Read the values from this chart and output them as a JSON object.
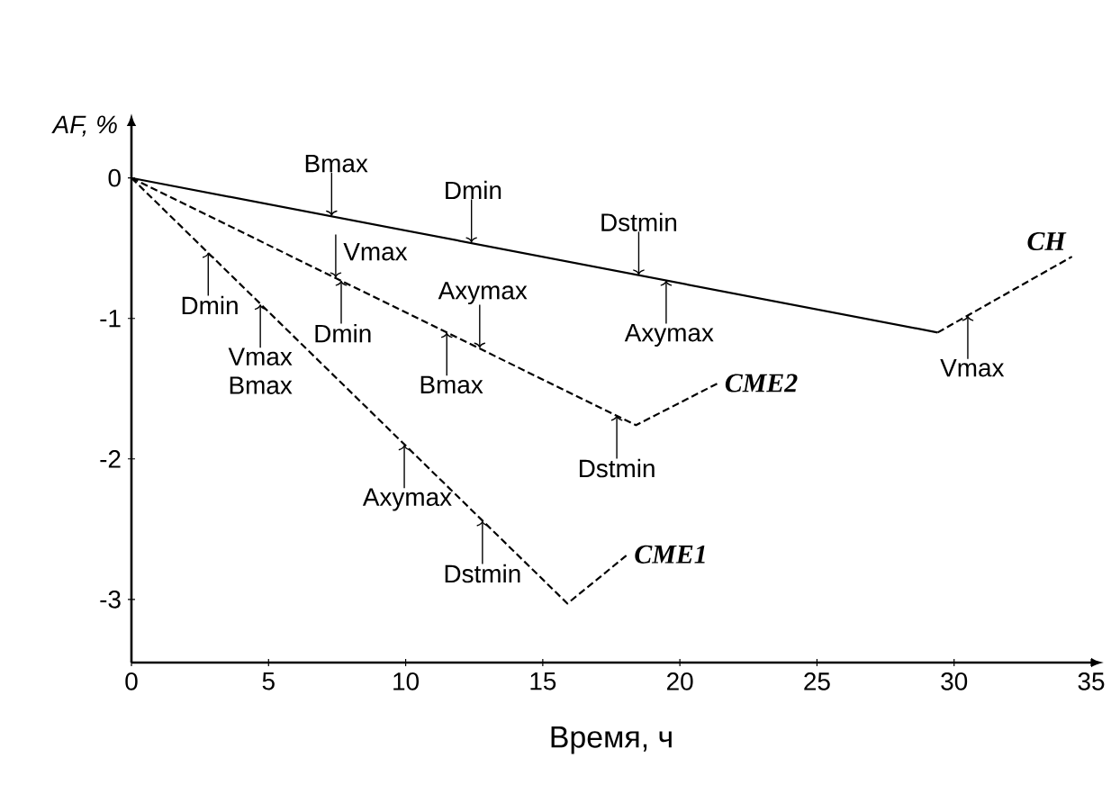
{
  "chart_data": {
    "type": "line",
    "xlabel": "Время, ч",
    "ylabel": "AF, %",
    "xlim": [
      0,
      35
    ],
    "ylim": [
      -3.45,
      0.37
    ],
    "xticks": [
      0,
      5,
      10,
      15,
      20,
      25,
      30,
      35
    ],
    "yticks": [
      0,
      -1,
      -2,
      -3
    ],
    "series": [
      {
        "color": "#000000",
        "line_style": "solid",
        "x": [
          0,
          29.4
        ],
        "values": [
          0,
          -1.1
        ]
      },
      {
        "name": "CH",
        "color": "#000000",
        "line_style": "dashed",
        "x": [
          29.4,
          34.3
        ],
        "values": [
          -1.1,
          -0.56
        ]
      },
      {
        "name": "CME2",
        "color": "#000000",
        "line_style": "dashed",
        "x": [
          0,
          18.4,
          21.4
        ],
        "values": [
          0,
          -1.76,
          -1.46
        ]
      },
      {
        "name": "CME1",
        "color": "#000000",
        "line_style": "dashed",
        "x": [
          0,
          15.9,
          18.1
        ],
        "values": [
          0,
          -3.03,
          -2.68
        ]
      }
    ],
    "annotations": [
      {
        "text": "Bmax",
        "x": 7.3,
        "y": -0.27
      },
      {
        "text": "Dmin",
        "x": 12.4,
        "y": -0.46
      },
      {
        "text": "Axymax",
        "x": 19.5,
        "y": -0.73
      },
      {
        "text": "Dstmin",
        "x": 18.5,
        "y": -0.69
      },
      {
        "text": "Vmax",
        "x": 30.5,
        "y": -0.98
      },
      {
        "text": "Dmin",
        "x": 7.65,
        "y": -0.73
      },
      {
        "text": "Vmax",
        "x": 7.45,
        "y": -0.71
      },
      {
        "text": "Bmax",
        "x": 11.5,
        "y": -1.1
      },
      {
        "text": "Axymax",
        "x": 12.7,
        "y": -1.21
      },
      {
        "text": "Dstmin",
        "x": 17.7,
        "y": -1.69
      },
      {
        "text": "Dmin",
        "x": 2.8,
        "y": -0.53
      },
      {
        "text": "Vmax Bmax",
        "x": 4.7,
        "y": -0.9
      },
      {
        "text": "Axymax",
        "x": 9.95,
        "y": -1.9
      },
      {
        "text": "Dstmin",
        "x": 12.8,
        "y": -2.44
      }
    ]
  }
}
